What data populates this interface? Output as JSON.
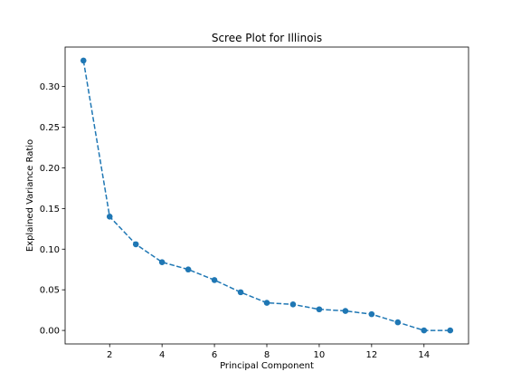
{
  "chart_data": {
    "type": "line",
    "title": "Scree Plot for Illinois",
    "xlabel": "Principal Component",
    "ylabel": "Explained Variance Ratio",
    "x": [
      1,
      2,
      3,
      4,
      5,
      6,
      7,
      8,
      9,
      10,
      11,
      12,
      13,
      14,
      15
    ],
    "series": [
      {
        "values": [
          0.332,
          0.14,
          0.106,
          0.084,
          0.075,
          0.062,
          0.047,
          0.034,
          0.032,
          0.026,
          0.024,
          0.02,
          0.01,
          0.0,
          0.0
        ],
        "color": "#1f77b4",
        "line_style": "dashed",
        "marker": "circle"
      }
    ],
    "xlim": [
      0.3,
      15.7
    ],
    "ylim": [
      -0.0166,
      0.3486
    ],
    "xticks": [
      2,
      4,
      6,
      8,
      10,
      12,
      14
    ],
    "yticks": [
      0.0,
      0.05,
      0.1,
      0.15,
      0.2,
      0.25,
      0.3
    ],
    "xtick_labels": [
      "2",
      "4",
      "6",
      "8",
      "10",
      "12",
      "14"
    ],
    "ytick_labels": [
      "0.00",
      "0.05",
      "0.10",
      "0.15",
      "0.20",
      "0.25",
      "0.30"
    ],
    "grid": false,
    "legend": false
  }
}
